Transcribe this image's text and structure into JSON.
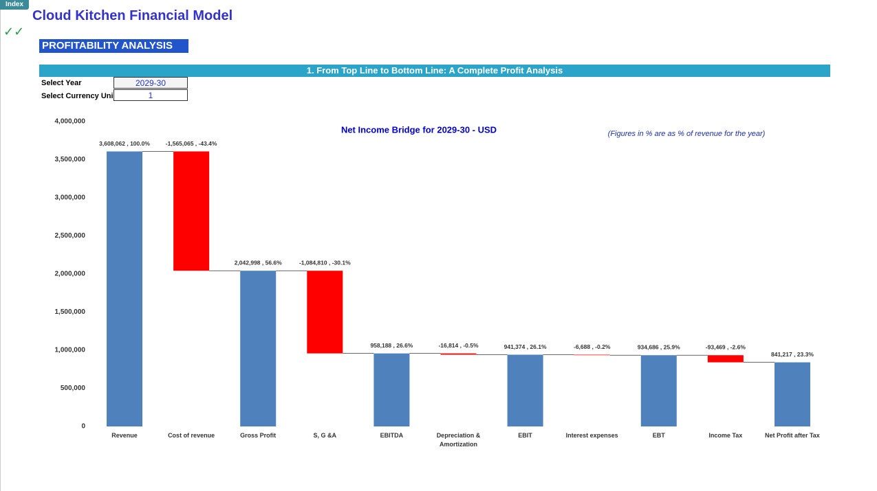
{
  "index_button": "Index",
  "header": {
    "title": "Cloud Kitchen Financial Model",
    "check": "✓✓",
    "section": "PROFITABILITY ANALYSIS",
    "banner": "1. From Top Line to Bottom Line: A Complete Profit Analysis"
  },
  "controls": {
    "year_label": "Select Year",
    "year": "2029-30",
    "currency_label": "Select Currency Uni",
    "currency": "1"
  },
  "chart_data": {
    "type": "waterfall",
    "title": "Net Income Bridge for 2029-30 - USD",
    "note": "(Figures in % are as % of revenue for the year)",
    "categories": [
      "Revenue",
      "Cost of revenue",
      "Gross Profit",
      "S, G &A",
      "EBITDA",
      "Depreciation & Amortization",
      "EBIT",
      "Interest expenses",
      "EBT",
      "Income Tax",
      "Net Profit after Tax"
    ],
    "values": [
      3608062,
      -1565065,
      2042998,
      -1084810,
      958188,
      -16814,
      941374,
      -6688,
      934686,
      -93469,
      841217
    ],
    "value_labels": [
      "3,608,062 , 100.0%",
      "-1,565,065 , -43.4%",
      "2,042,998 , 56.6%",
      "-1,084,810 , -30.1%",
      "958,188 , 26.6%",
      "-16,814 , -0.5%",
      "941,374 , 26.1%",
      "-6,688 , -0.2%",
      "934,686 , 25.9%",
      "-93,469 , -2.6%",
      "841,217 , 23.3%"
    ],
    "color": "#4f81bd",
    "decrease_color": "#ff0000",
    "ylim": [
      0,
      4000000
    ],
    "yticks": [
      0,
      {
        "value": 500000,
        "label": "500,000"
      },
      {
        "value": 1000000,
        "label": "1,000,000"
      },
      {
        "value": 1500000,
        "label": "1,500,000"
      },
      {
        "value": 2000000,
        "label": "2,000,000"
      },
      {
        "value": 2500000,
        "label": "2,500,000"
      },
      {
        "value": 3000000,
        "label": "3,000,000"
      },
      {
        "value": 3500000,
        "label": "3,500,000"
      },
      {
        "value": 4000000,
        "label": "4,000,000"
      }
    ]
  }
}
